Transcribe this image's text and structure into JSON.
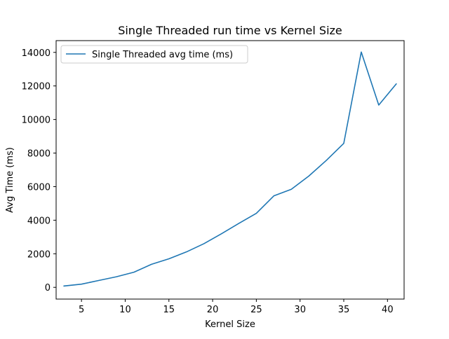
{
  "chart_data": {
    "type": "line",
    "title": "Single Threaded run time vs Kernel Size",
    "xlabel": "Kernel Size",
    "ylabel": "Avg Time (ms)",
    "xlim": [
      2.1,
      41.9
    ],
    "ylim": [
      -700,
      14700
    ],
    "xticks": [
      5,
      10,
      15,
      20,
      25,
      30,
      35,
      40
    ],
    "yticks": [
      0,
      2000,
      4000,
      6000,
      8000,
      10000,
      12000,
      14000
    ],
    "grid": false,
    "legend_position": "top-left",
    "series": [
      {
        "name": "Single Threaded avg time (ms)",
        "color": "#1f77b4",
        "x": [
          3,
          5,
          7,
          9,
          11,
          13,
          15,
          17,
          19,
          21,
          23,
          25,
          27,
          29,
          31,
          33,
          35,
          37,
          39,
          41
        ],
        "y": [
          80,
          190,
          410,
          630,
          900,
          1370,
          1700,
          2110,
          2600,
          3190,
          3810,
          4410,
          5450,
          5840,
          6630,
          7560,
          8580,
          14020,
          10860,
          12120
        ]
      }
    ]
  }
}
